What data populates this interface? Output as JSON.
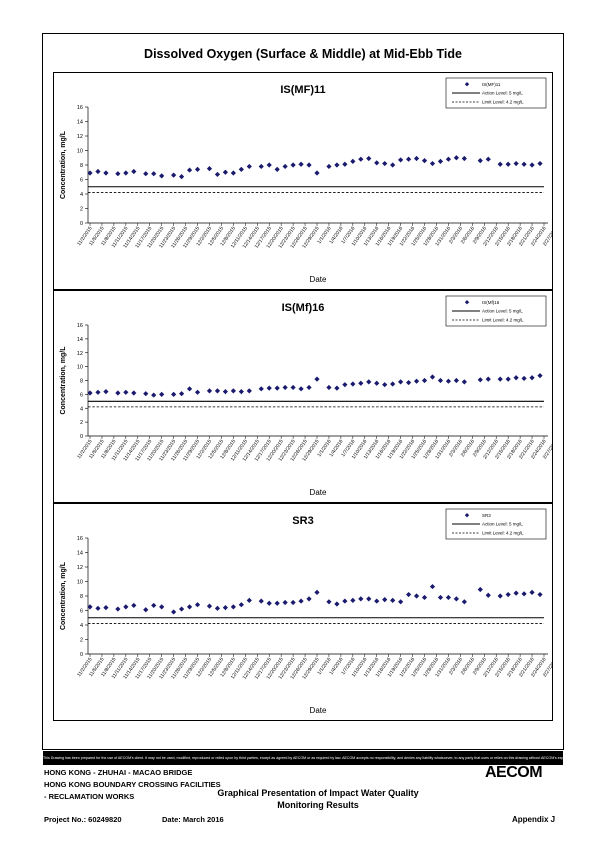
{
  "document": {
    "main_title": "Dissolved Oxygen (Surface & Middle) at Mid-Ebb Tide",
    "disclaimer": "This Drawing has been prepared for the use of AECOM's client. It may not be used, modified, reproduced or relied upon by third parties, except as agreed by AECOM or as required by law. AECOM accepts no responsibility, and denies any liability whatsoever, to any party that uses or relies on this drawing without AECOM's express written consent.",
    "project_lines": [
      "HONG KONG - ZHUHAI - MACAO BRIDGE",
      "HONG KONG BOUNDARY CROSSING FACILITIES",
      "- RECLAMATION WORKS"
    ],
    "presentation_title": [
      "Graphical Presentation of Impact Water Quality",
      "Monitoring Results"
    ],
    "project_no": "Project No.: 60249820",
    "date": "Date: March 2016",
    "appendix": "Appendix J",
    "logo_text": "AECOM"
  },
  "styles": {
    "marker_color": "#1a1a6e",
    "line_color": "#000000"
  },
  "chart_data": [
    {
      "type": "scatter",
      "title": "IS(MF)11",
      "xlabel": "Date",
      "ylabel": "Concentration, mg/L",
      "ylim": [
        0,
        16
      ],
      "yticks": [
        0,
        2,
        4,
        6,
        8,
        10,
        12,
        14,
        16
      ],
      "xlim_days": [
        0,
        114
      ],
      "x_tick_labels": [
        "11/2/2015",
        "11/5/2015",
        "11/8/2015",
        "11/11/2015",
        "11/14/2015",
        "11/17/2015",
        "11/20/2015",
        "11/23/2015",
        "11/26/2015",
        "11/29/2015",
        "12/2/2015",
        "12/5/2015",
        "12/8/2015",
        "12/11/2015",
        "12/14/2015",
        "12/17/2015",
        "12/20/2015",
        "12/23/2015",
        "12/26/2015",
        "12/29/2015",
        "1/1/2016",
        "1/4/2016",
        "1/7/2016",
        "1/10/2016",
        "1/13/2016",
        "1/16/2016",
        "1/19/2016",
        "1/22/2016",
        "1/25/2016",
        "1/28/2016",
        "1/31/2016",
        "2/3/2016",
        "2/6/2016",
        "2/9/2016",
        "2/12/2016",
        "2/15/2016",
        "2/18/2016",
        "2/21/2016",
        "2/24/2016",
        "2/27/2016"
      ],
      "legend": {
        "series": "IS(MF)11",
        "action": "Action Level: 5 mg/L",
        "limit": "Limit Level: 4.2 mg/L"
      },
      "action_level": 5,
      "limit_level": 4.2,
      "series": [
        {
          "name": "IS(MF)11",
          "x": [
            0,
            2,
            4,
            7,
            9,
            11,
            14,
            16,
            18,
            21,
            23,
            25,
            27,
            30,
            32,
            34,
            36,
            38,
            40,
            43,
            45,
            47,
            49,
            51,
            53,
            55,
            57,
            60,
            62,
            64,
            66,
            68,
            70,
            72,
            74,
            76,
            78,
            80,
            82,
            84,
            86,
            88,
            90,
            92,
            94,
            98,
            100,
            103,
            105,
            107,
            109,
            111,
            113
          ],
          "y": [
            6.9,
            7.1,
            6.9,
            6.8,
            6.9,
            7.1,
            6.8,
            6.8,
            6.5,
            6.6,
            6.4,
            7.3,
            7.4,
            7.5,
            6.7,
            7.0,
            6.9,
            7.4,
            7.8,
            7.8,
            8.0,
            7.4,
            7.8,
            8.0,
            8.1,
            8.0,
            6.9,
            7.8,
            8.0,
            8.1,
            8.5,
            8.8,
            8.9,
            8.3,
            8.2,
            8.0,
            8.7,
            8.8,
            8.9,
            8.6,
            8.2,
            8.5,
            8.8,
            9.0,
            8.9,
            8.6,
            8.8,
            8.1,
            8.1,
            8.2,
            8.1,
            8.0,
            8.2
          ]
        }
      ]
    },
    {
      "type": "scatter",
      "title": "IS(Mf)16",
      "xlabel": "Date",
      "ylabel": "Concentration, mg/L",
      "ylim": [
        0,
        16
      ],
      "yticks": [
        0,
        2,
        4,
        6,
        8,
        10,
        12,
        14,
        16
      ],
      "xlim_days": [
        0,
        114
      ],
      "x_tick_labels": [
        "11/2/2015",
        "11/5/2015",
        "11/8/2015",
        "11/11/2015",
        "11/14/2015",
        "11/17/2015",
        "11/20/2015",
        "11/23/2015",
        "11/26/2015",
        "11/29/2015",
        "12/2/2015",
        "12/5/2015",
        "12/8/2015",
        "12/11/2015",
        "12/14/2015",
        "12/17/2015",
        "12/20/2015",
        "12/23/2015",
        "12/26/2015",
        "12/29/2015",
        "1/1/2016",
        "1/4/2016",
        "1/7/2016",
        "1/10/2016",
        "1/13/2016",
        "1/16/2016",
        "1/19/2016",
        "1/22/2016",
        "1/25/2016",
        "1/28/2016",
        "1/31/2016",
        "2/3/2016",
        "2/6/2016",
        "2/9/2016",
        "2/12/2016",
        "2/15/2016",
        "2/18/2016",
        "2/21/2016",
        "2/24/2016",
        "2/27/2016"
      ],
      "legend": {
        "series": "IS(Mf)16",
        "action": "Action Level: 5 mg/L",
        "limit": "Limit Level: 4.2 mg/L"
      },
      "action_level": 5,
      "limit_level": 4.2,
      "series": [
        {
          "name": "IS(Mf)16",
          "x": [
            0,
            2,
            4,
            7,
            9,
            11,
            14,
            16,
            18,
            21,
            23,
            25,
            27,
            30,
            32,
            34,
            36,
            38,
            40,
            43,
            45,
            47,
            49,
            51,
            53,
            55,
            57,
            60,
            62,
            64,
            66,
            68,
            70,
            72,
            74,
            76,
            78,
            80,
            82,
            84,
            86,
            88,
            90,
            92,
            94,
            98,
            100,
            103,
            105,
            107,
            109,
            111,
            113
          ],
          "y": [
            6.2,
            6.3,
            6.4,
            6.2,
            6.3,
            6.2,
            6.1,
            5.9,
            6.0,
            6.0,
            6.1,
            6.8,
            6.3,
            6.5,
            6.5,
            6.4,
            6.5,
            6.4,
            6.5,
            6.8,
            6.9,
            6.9,
            7.0,
            7.0,
            6.8,
            7.0,
            8.2,
            7.0,
            6.9,
            7.4,
            7.5,
            7.6,
            7.8,
            7.6,
            7.4,
            7.5,
            7.8,
            7.7,
            7.9,
            8.0,
            8.5,
            8.0,
            7.9,
            8.0,
            7.8,
            8.1,
            8.2,
            8.2,
            8.2,
            8.4,
            8.3,
            8.4,
            8.7
          ]
        }
      ]
    },
    {
      "type": "scatter",
      "title": "SR3",
      "xlabel": "Date",
      "ylabel": "Concentration, mg/L",
      "ylim": [
        0,
        16
      ],
      "yticks": [
        0,
        2,
        4,
        6,
        8,
        10,
        12,
        14,
        16
      ],
      "xlim_days": [
        0,
        114
      ],
      "x_tick_labels": [
        "11/2/2015",
        "11/5/2015",
        "11/8/2015",
        "11/11/2015",
        "11/14/2015",
        "11/17/2015",
        "11/20/2015",
        "11/23/2015",
        "11/26/2015",
        "11/29/2015",
        "12/2/2015",
        "12/5/2015",
        "12/8/2015",
        "12/11/2015",
        "12/14/2015",
        "12/17/2015",
        "12/20/2015",
        "12/23/2015",
        "12/26/2015",
        "12/29/2015",
        "1/1/2016",
        "1/4/2016",
        "1/7/2016",
        "1/10/2016",
        "1/13/2016",
        "1/16/2016",
        "1/19/2016",
        "1/22/2016",
        "1/25/2016",
        "1/28/2016",
        "1/31/2016",
        "2/3/2016",
        "2/6/2016",
        "2/9/2016",
        "2/12/2016",
        "2/15/2016",
        "2/18/2016",
        "2/21/2016",
        "2/24/2016",
        "2/27/2016"
      ],
      "legend": {
        "series": "SR3",
        "action": "Action Level: 5 mg/L",
        "limit": "Limit Level: 4.2 mg/L"
      },
      "action_level": 5,
      "limit_level": 4.2,
      "series": [
        {
          "name": "SR3",
          "x": [
            0,
            2,
            4,
            7,
            9,
            11,
            14,
            16,
            18,
            21,
            23,
            25,
            27,
            30,
            32,
            34,
            36,
            38,
            40,
            43,
            45,
            47,
            49,
            51,
            53,
            55,
            57,
            60,
            62,
            64,
            66,
            68,
            70,
            72,
            74,
            76,
            78,
            80,
            82,
            84,
            86,
            88,
            90,
            92,
            94,
            98,
            100,
            103,
            105,
            107,
            109,
            111,
            113
          ],
          "y": [
            6.5,
            6.3,
            6.4,
            6.2,
            6.5,
            6.7,
            6.1,
            6.7,
            6.5,
            5.8,
            6.2,
            6.5,
            6.8,
            6.6,
            6.3,
            6.4,
            6.5,
            6.8,
            7.4,
            7.3,
            7.0,
            7.0,
            7.1,
            7.1,
            7.3,
            7.6,
            8.5,
            7.2,
            6.9,
            7.3,
            7.4,
            7.6,
            7.6,
            7.3,
            7.5,
            7.4,
            7.2,
            8.2,
            8.0,
            7.8,
            9.3,
            7.8,
            7.8,
            7.6,
            7.2,
            8.9,
            8.1,
            8.0,
            8.2,
            8.4,
            8.3,
            8.5,
            8.2
          ]
        }
      ]
    }
  ]
}
